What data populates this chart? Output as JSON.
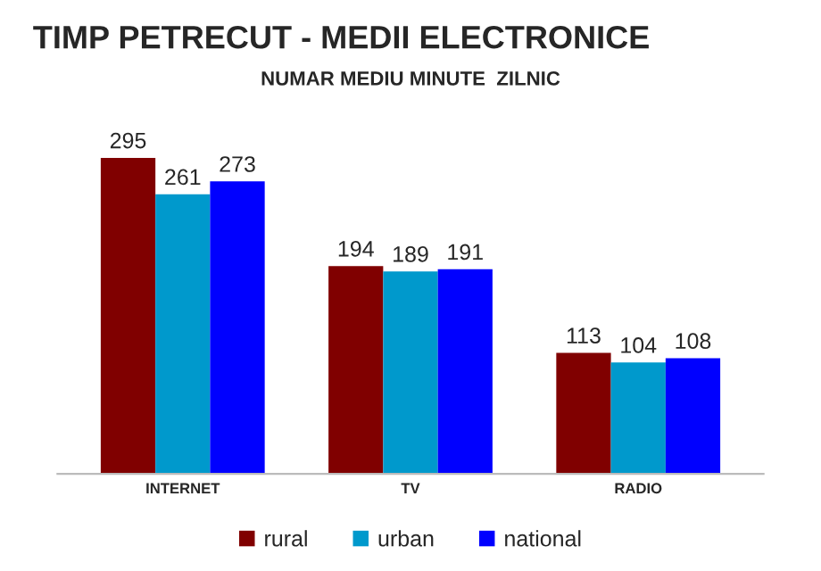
{
  "chart_data": {
    "type": "bar",
    "title": "TIMP PETRECUT - MEDII ELECTRONICE",
    "subtitle": "NUMAR MEDIU MINUTE  ZILNIC",
    "categories": [
      "INTERNET",
      "TV",
      "RADIO"
    ],
    "series": [
      {
        "name": "rural",
        "color": "#800000",
        "values": [
          295,
          194,
          113
        ]
      },
      {
        "name": "urban",
        "color": "#0099cc",
        "values": [
          261,
          189,
          104
        ]
      },
      {
        "name": "national",
        "color": "#0000ff",
        "values": [
          273,
          191,
          108
        ]
      }
    ],
    "data_labels": true,
    "legend": "bottom"
  }
}
